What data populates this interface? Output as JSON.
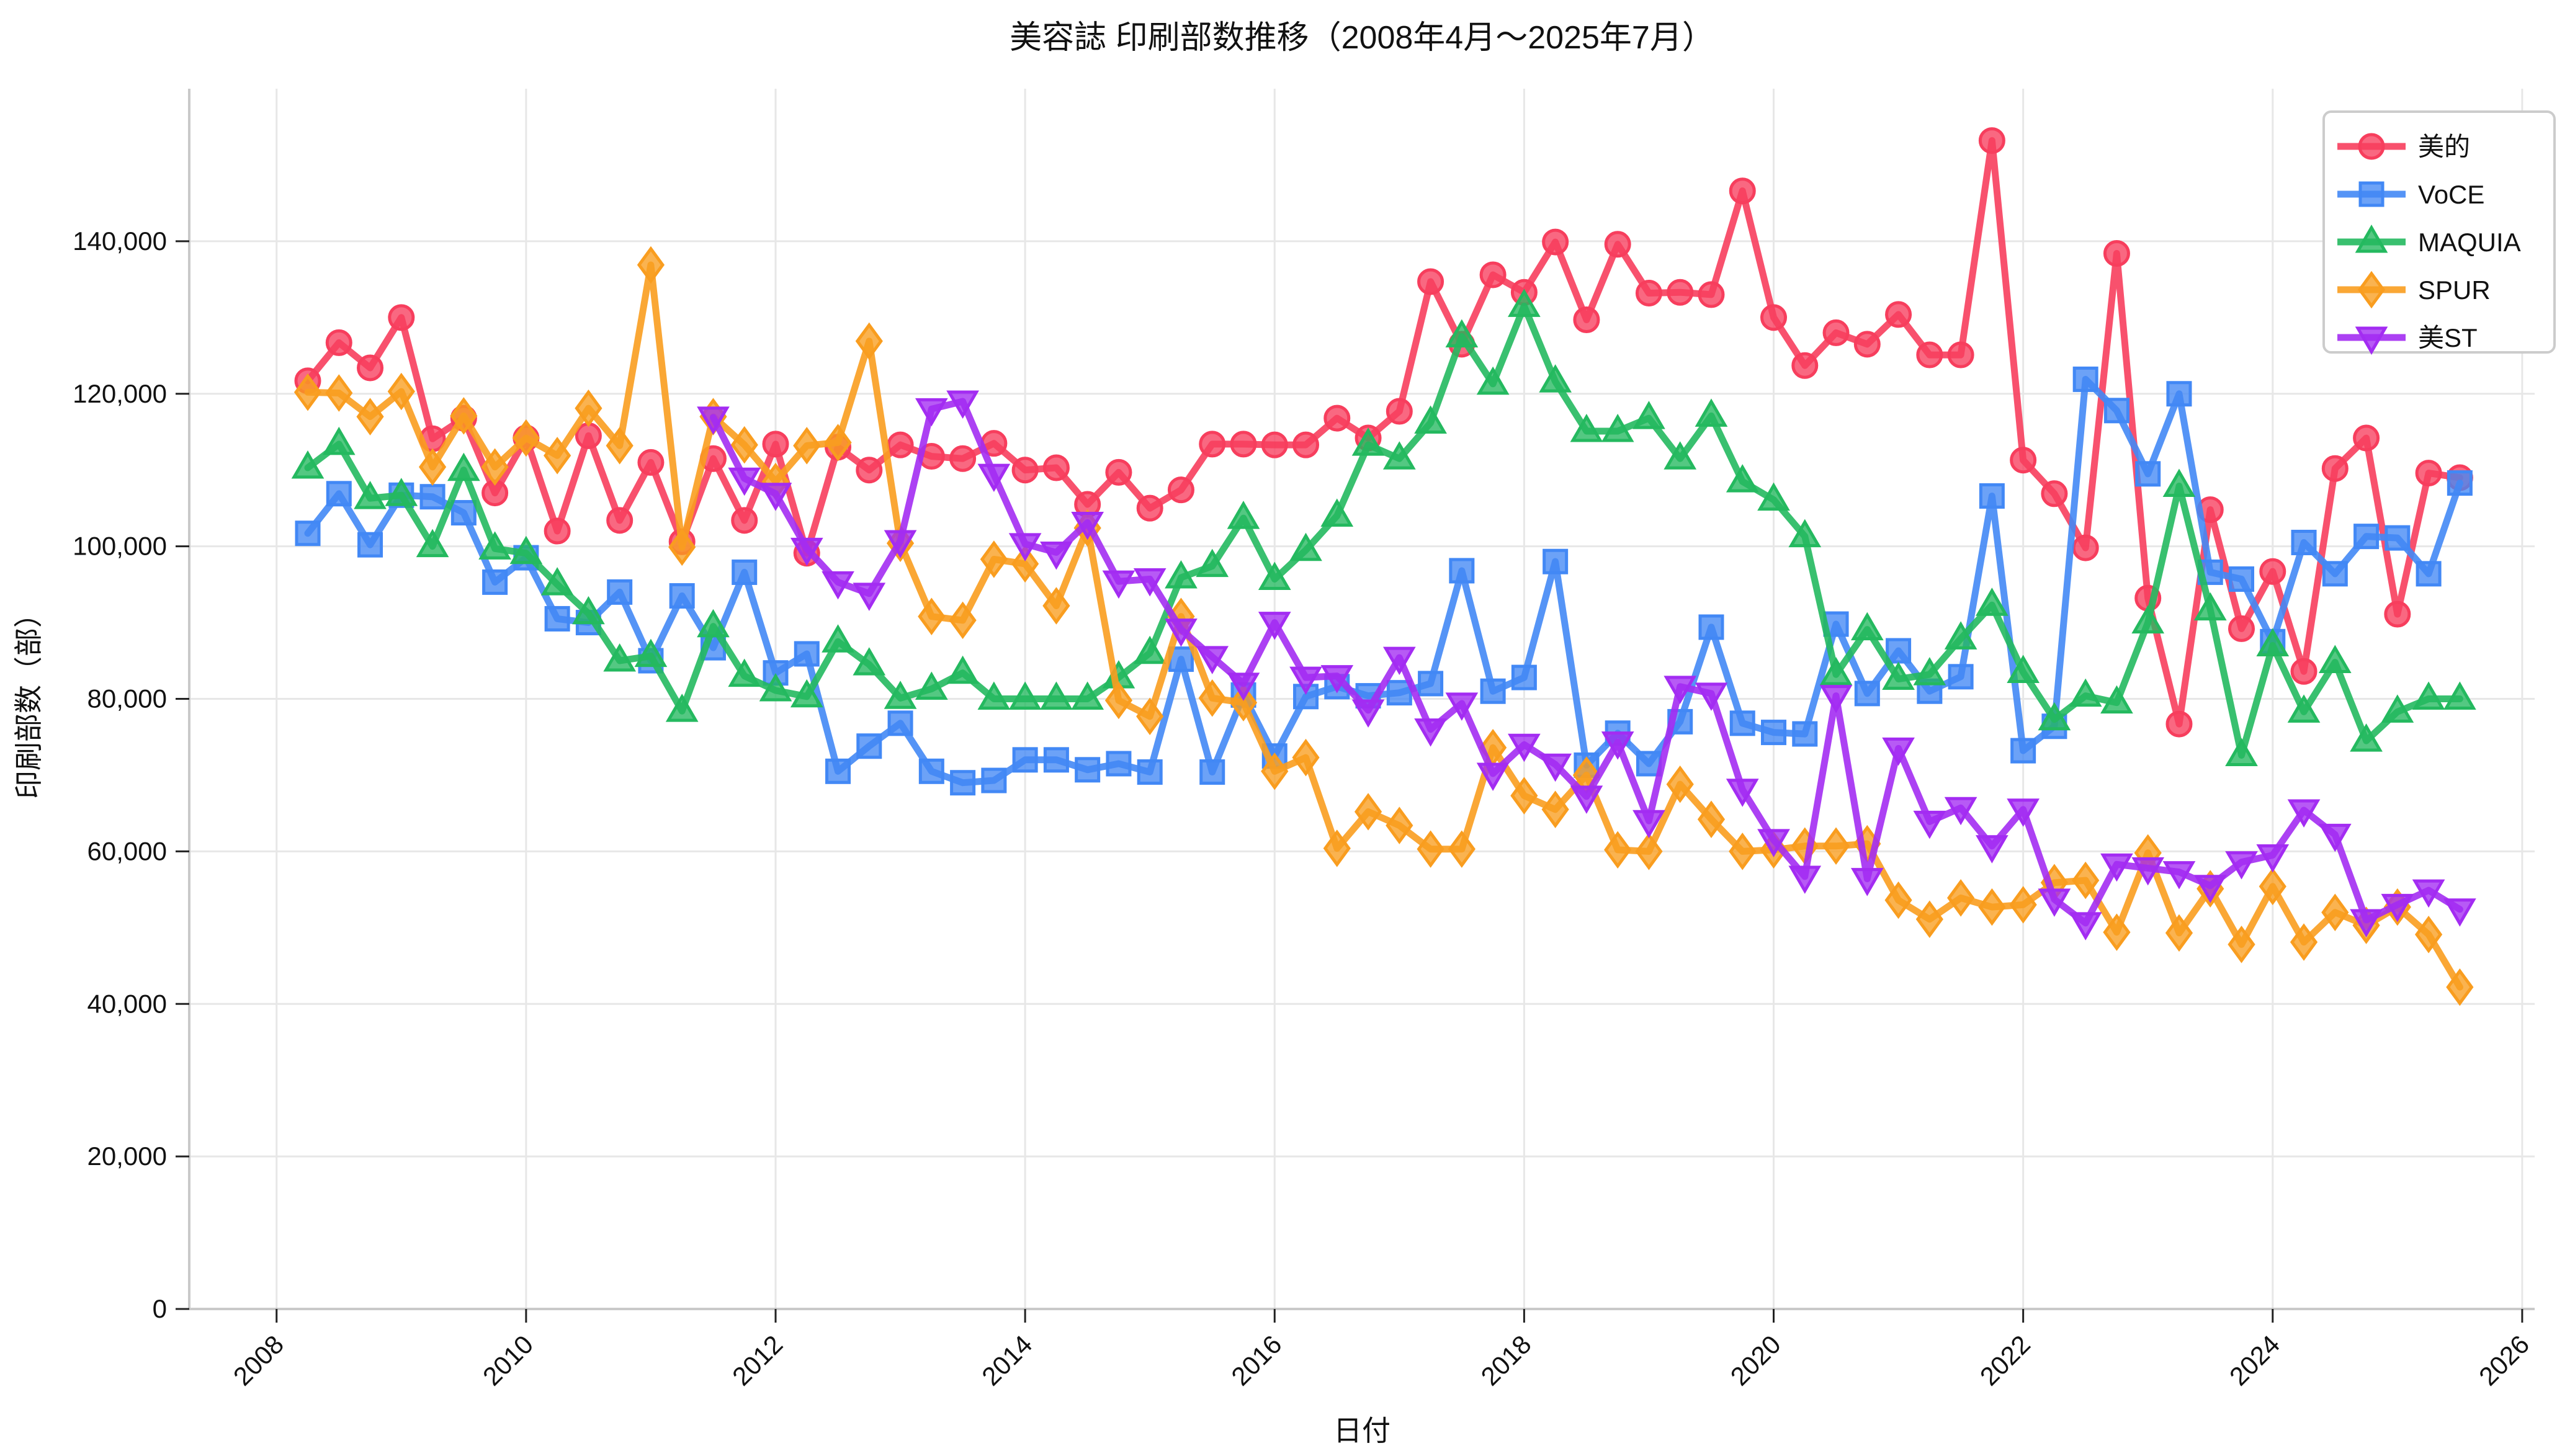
{
  "title": "美容誌 印刷部数推移（2008年4月～2025年7月）",
  "x_axis": {
    "label": "日付",
    "ticks": [
      2008,
      2010,
      2012,
      2014,
      2016,
      2018,
      2020,
      2022,
      2024,
      2026
    ]
  },
  "y_axis": {
    "label": "印刷部数（部）",
    "ticks": [
      0,
      20000,
      40000,
      60000,
      80000,
      100000,
      120000,
      140000
    ],
    "max": 160000
  },
  "colors": {
    "grid": "#e7e7e7",
    "axis": "#c9c9c9",
    "tick": "#222222",
    "text": "#111111",
    "legend_border": "#cccccc"
  },
  "chart_data": {
    "type": "line",
    "title": "美容誌 印刷部数推移（2008年4月～2025年7月）",
    "xlabel": "日付",
    "ylabel": "印刷部数（部）",
    "ylim": [
      0,
      160000
    ],
    "grid": true,
    "legend_position": "top-right",
    "x": [
      "2008-04",
      "2008-07",
      "2008-10",
      "2009-01",
      "2009-04",
      "2009-07",
      "2009-10",
      "2010-01",
      "2010-04",
      "2010-07",
      "2010-10",
      "2011-01",
      "2011-04",
      "2011-07",
      "2011-10",
      "2012-01",
      "2012-04",
      "2012-07",
      "2012-10",
      "2013-01",
      "2013-04",
      "2013-07",
      "2013-10",
      "2014-01",
      "2014-04",
      "2014-07",
      "2014-10",
      "2015-01",
      "2015-04",
      "2015-07",
      "2015-10",
      "2016-01",
      "2016-04",
      "2016-07",
      "2016-10",
      "2017-01",
      "2017-04",
      "2017-07",
      "2017-10",
      "2018-01",
      "2018-04",
      "2018-07",
      "2018-10",
      "2019-01",
      "2019-04",
      "2019-07",
      "2019-10",
      "2020-01",
      "2020-04",
      "2020-07",
      "2020-10",
      "2021-01",
      "2021-04",
      "2021-07",
      "2021-10",
      "2022-01",
      "2022-04",
      "2022-07",
      "2022-10",
      "2023-01",
      "2023-04",
      "2023-07",
      "2023-10",
      "2024-01",
      "2024-04",
      "2024-07",
      "2024-10",
      "2025-01",
      "2025-04",
      "2025-07"
    ],
    "series": [
      {
        "name": "美的",
        "color": "#f73e5d",
        "marker": "circle",
        "values": [
          121700,
          126700,
          123400,
          130000,
          114100,
          116800,
          107000,
          114200,
          102000,
          114500,
          103400,
          111000,
          100600,
          111500,
          103400,
          113400,
          99100,
          113000,
          110000,
          113300,
          111800,
          111500,
          113500,
          110000,
          110300,
          105500,
          109700,
          105000,
          107400,
          113400,
          113400,
          113300,
          113300,
          116800,
          114200,
          117700,
          134700,
          126500,
          135600,
          133300,
          139900,
          129700,
          139600,
          133200,
          133300,
          133000,
          146600,
          130000,
          123700,
          128000,
          126500,
          130400,
          125100,
          125100,
          153200,
          111300,
          106900,
          99800,
          138400,
          93200,
          76700,
          104800,
          89200,
          96700,
          83600,
          110200,
          114200,
          91100,
          109600,
          109000
        ]
      },
      {
        "name": "VoCE",
        "color": "#4288f5",
        "marker": "square",
        "values": [
          101700,
          106900,
          100200,
          106700,
          106500,
          104400,
          95300,
          98500,
          90500,
          90000,
          94000,
          85000,
          93500,
          86700,
          96600,
          83400,
          85900,
          70500,
          73800,
          76800,
          70500,
          69000,
          69300,
          72000,
          72000,
          70700,
          71500,
          70400,
          85200,
          70400,
          80500,
          72500,
          80300,
          81600,
          80400,
          80800,
          82000,
          96800,
          81000,
          82800,
          98000,
          71300,
          75500,
          71500,
          77000,
          89400,
          76800,
          75600,
          75400,
          89800,
          80700,
          86300,
          81000,
          82900,
          106600,
          73200,
          76400,
          121900,
          117800,
          109500,
          120000,
          96600,
          95700,
          87500,
          100500,
          96400,
          101300,
          101100,
          96400,
          108300
        ]
      },
      {
        "name": "MAQUIA",
        "color": "#24b95f",
        "marker": "triangle-up",
        "values": [
          110300,
          113400,
          106300,
          106700,
          100000,
          110000,
          99700,
          99100,
          95000,
          91200,
          85000,
          85600,
          78400,
          89500,
          83000,
          81100,
          80300,
          87500,
          84500,
          80100,
          81300,
          83400,
          80000,
          80000,
          80000,
          80000,
          82800,
          86000,
          95900,
          97400,
          103700,
          95700,
          99500,
          104000,
          113300,
          111500,
          116200,
          127500,
          121300,
          131500,
          121600,
          115100,
          115100,
          116800,
          111500,
          117100,
          108500,
          106100,
          101300,
          83200,
          89100,
          82600,
          83200,
          87900,
          92300,
          83500,
          77300,
          80400,
          79500,
          90000,
          107900,
          91700,
          72600,
          87000,
          78300,
          84800,
          74500,
          78300,
          80000,
          80000
        ]
      },
      {
        "name": "SPUR",
        "color": "#f99d1f",
        "marker": "diamond",
        "values": [
          120200,
          120100,
          117000,
          120300,
          110400,
          117100,
          110400,
          114200,
          111900,
          118100,
          113200,
          136900,
          99900,
          117000,
          113300,
          108500,
          113200,
          113600,
          126900,
          100400,
          90800,
          90300,
          98300,
          97700,
          92200,
          102400,
          79800,
          77700,
          90800,
          80100,
          79500,
          70500,
          72300,
          60400,
          65200,
          63400,
          60300,
          60300,
          73600,
          67300,
          65500,
          70000,
          60200,
          60000,
          68800,
          64200,
          60000,
          60200,
          60700,
          60700,
          61000,
          53600,
          51100,
          53900,
          52700,
          53000,
          55900,
          56200,
          49400,
          59800,
          49300,
          55100,
          47800,
          55400,
          48100,
          52000,
          50300,
          52700,
          49100,
          42200
        ]
      },
      {
        "name": "美ST",
        "color": "#a32cf2",
        "marker": "triangle-down",
        "values": [
          null,
          null,
          null,
          null,
          null,
          null,
          null,
          null,
          null,
          null,
          null,
          null,
          null,
          116900,
          108900,
          106900,
          99700,
          95300,
          93800,
          100700,
          118000,
          119000,
          109400,
          100300,
          99200,
          103100,
          95400,
          95700,
          89100,
          85500,
          82000,
          90000,
          82800,
          83000,
          78500,
          85400,
          76000,
          79400,
          70200,
          74000,
          71400,
          67200,
          74300,
          64000,
          81600,
          80700,
          68100,
          61500,
          56700,
          80400,
          56400,
          73500,
          63900,
          65700,
          60700,
          65500,
          53700,
          50600,
          58300,
          57800,
          57300,
          55500,
          58600,
          59500,
          65400,
          62200,
          51000,
          53000,
          54900,
          52400
        ]
      }
    ]
  }
}
